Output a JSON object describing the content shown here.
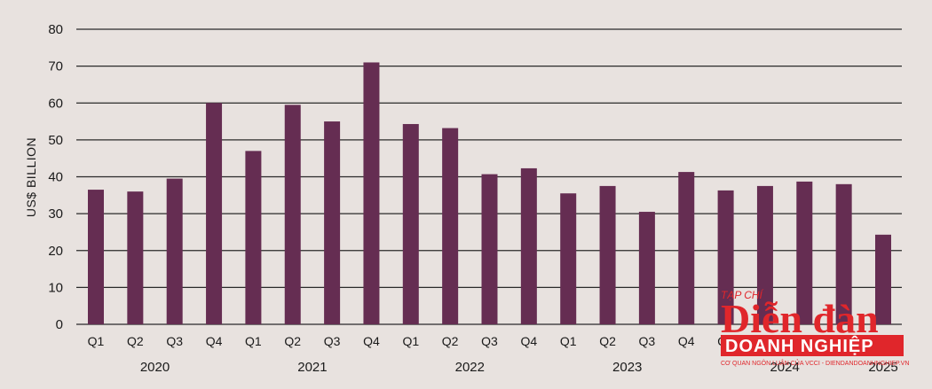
{
  "chart_data": {
    "type": "bar",
    "ylabel": "US$ BILLION",
    "ylim": [
      0,
      80
    ],
    "yticks": [
      0,
      10,
      20,
      30,
      40,
      50,
      60,
      70,
      80
    ],
    "grid": true,
    "bar_color": "#652d52",
    "categories": [
      "Q1",
      "Q2",
      "Q3",
      "Q4",
      "Q1",
      "Q2",
      "Q3",
      "Q4",
      "Q1",
      "Q2",
      "Q3",
      "Q4",
      "Q1",
      "Q2",
      "Q3",
      "Q4",
      "Q1",
      "Q2",
      "Q3",
      "Q4",
      "Q1"
    ],
    "groups": [
      {
        "label": "2020",
        "count": 4
      },
      {
        "label": "2021",
        "count": 4
      },
      {
        "label": "2022",
        "count": 4
      },
      {
        "label": "2023",
        "count": 4
      },
      {
        "label": "2024",
        "count": 4
      },
      {
        "label": "2025",
        "count": 1
      }
    ],
    "values": [
      36.5,
      36,
      39.5,
      60,
      47,
      59.5,
      55,
      71,
      54.3,
      53.2,
      40.7,
      42.3,
      35.5,
      37.5,
      30.5,
      41.3,
      36.3,
      37.5,
      38.7,
      38,
      24.3
    ]
  },
  "watermark": {
    "line1": "TẠP CHÍ",
    "line2": "Diễn đàn",
    "line3": "DOANH NGHIỆP",
    "line4": "CƠ QUAN NGÔN LUẬN CỦA VCCI - DIENDANDOANHNGHIEP.VN",
    "color": "#e0262b"
  }
}
